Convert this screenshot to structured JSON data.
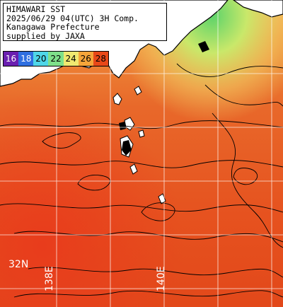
{
  "title": {
    "line1": "HIMAWARI SST",
    "line2": "2025/06/29 04(UTC) 3H Comp.",
    "line3": "Kanagawa Prefecture",
    "line4": "supplied by JAXA"
  },
  "legend": [
    {
      "label": "16",
      "color": "#6a1fb0"
    },
    {
      "label": "18",
      "color": "#2f6fe0"
    },
    {
      "label": "20",
      "color": "#4fd6e8"
    },
    {
      "label": "22",
      "color": "#7ee08a"
    },
    {
      "label": "24",
      "color": "#f0e870"
    },
    {
      "label": "26",
      "color": "#f5a53a"
    },
    {
      "label": "28",
      "color": "#e84818"
    }
  ],
  "grid_labels": {
    "lat_32": "32N",
    "lon_138": "138E",
    "lon_140": "140E"
  },
  "colors": {
    "sea_warm": "#e24e18",
    "sea_hot": "#e8401a",
    "land": "#000000",
    "grid": "#ffffff"
  }
}
